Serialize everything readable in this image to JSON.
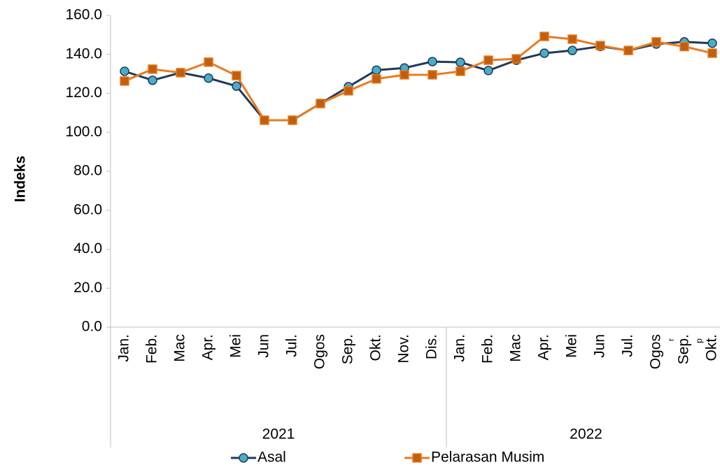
{
  "chart_data": {
    "type": "line",
    "y_label": "Indeks",
    "groups": [
      {
        "label": "2021",
        "categories": [
          "Jan.",
          "Feb.",
          "Mac",
          "Apr.",
          "Mei",
          "Jun",
          "Jul.",
          "Ogos",
          "Sep.",
          "Okt.",
          "Nov.",
          "Dis."
        ]
      },
      {
        "label": "2022",
        "categories": [
          "Jan.",
          "Feb.",
          "Mac",
          "Apr.",
          "Mei",
          "Jun",
          "Jul.",
          "Ogos",
          "Sep.",
          "Okt."
        ],
        "notes": {
          "7": "r",
          "8": "p"
        }
      }
    ],
    "series": [
      {
        "name": "Asal",
        "color": "#1f3a5a",
        "marker": "circle",
        "marker_color": "#4bacc6",
        "values": [
          131.3,
          126.7,
          130.6,
          127.8,
          123.7,
          106.2,
          106.2,
          114.8,
          123.4,
          131.9,
          133.0,
          136.3,
          135.9,
          131.7,
          137.0,
          140.6,
          142.0,
          144.1,
          142.0,
          145.3,
          146.4,
          145.7
        ]
      },
      {
        "name": "Pelarasan Musim",
        "color": "#e97b22",
        "marker": "square",
        "marker_color": "#c0600f",
        "values": [
          126.3,
          132.4,
          130.6,
          136.0,
          129.1,
          106.2,
          106.2,
          114.8,
          121.3,
          127.4,
          129.5,
          129.5,
          131.3,
          137.0,
          137.7,
          149.2,
          147.8,
          144.5,
          142.0,
          146.4,
          144.0,
          140.6
        ]
      }
    ],
    "ylim": [
      0,
      160
    ],
    "yticks": [
      {
        "value": 0,
        "label": "0.0"
      },
      {
        "value": 20,
        "label": "20.0"
      },
      {
        "value": 40,
        "label": "40.0"
      },
      {
        "value": 60,
        "label": "60.0"
      },
      {
        "value": 80,
        "label": "80.0"
      },
      {
        "value": 100,
        "label": "100.0"
      },
      {
        "value": 120,
        "label": "120.0"
      },
      {
        "value": 140,
        "label": "140.0"
      },
      {
        "value": 160,
        "label": "160.0"
      }
    ],
    "legend": "bottom"
  }
}
